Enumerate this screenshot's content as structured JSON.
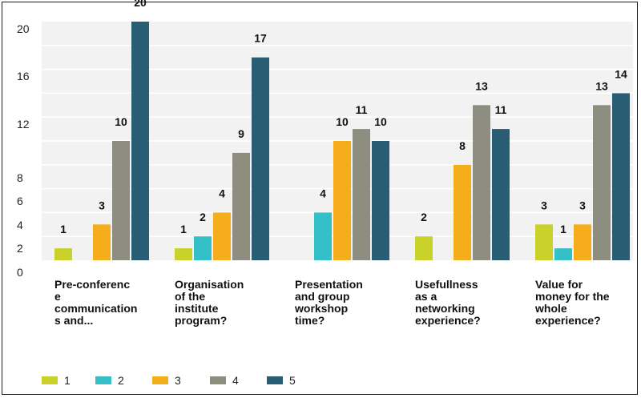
{
  "chart_data": {
    "type": "bar",
    "categories": [
      "Pre-conferenc\ne\ncommunication\ns and...",
      "Organisation\nof the\ninstitute\nprogram?",
      "Presentation\nand group\nworkshop\ntime?",
      "Usefullness\nas a\nnetworking\nexperience?",
      "Value for\nmoney for the\nwhole\nexperience?"
    ],
    "series": [
      {
        "name": "1",
        "color": "#c8d22a",
        "values": [
          1,
          1,
          null,
          2,
          3
        ],
        "labels": [
          "1",
          "1",
          "",
          "2",
          "3"
        ]
      },
      {
        "name": "2",
        "color": "#35bfc6",
        "values": [
          null,
          2,
          4,
          null,
          1
        ],
        "labels": [
          "",
          "2",
          "4",
          "",
          "1"
        ]
      },
      {
        "name": "3",
        "color": "#f6ad1c",
        "values": [
          3,
          4,
          10,
          8,
          3
        ],
        "labels": [
          "3",
          "4",
          "10",
          "8",
          "3"
        ]
      },
      {
        "name": "4",
        "color": "#8d8d80",
        "values": [
          10,
          9,
          11,
          13,
          13
        ],
        "labels": [
          "10",
          "9",
          "11",
          "13",
          "13"
        ]
      },
      {
        "name": "5",
        "color": "#295d73",
        "values": [
          20,
          17,
          10,
          11,
          14
        ],
        "labels": [
          "20",
          "17",
          "10",
          "11",
          "14"
        ]
      }
    ],
    "y_ticks": [
      "0",
      "2",
      "4",
      "6",
      "8",
      "12",
      "16",
      "20"
    ],
    "ylim": [
      0,
      20
    ],
    "grid": true,
    "legend_position": "bottom-left",
    "title": "",
    "xlabel": "",
    "ylabel": ""
  }
}
